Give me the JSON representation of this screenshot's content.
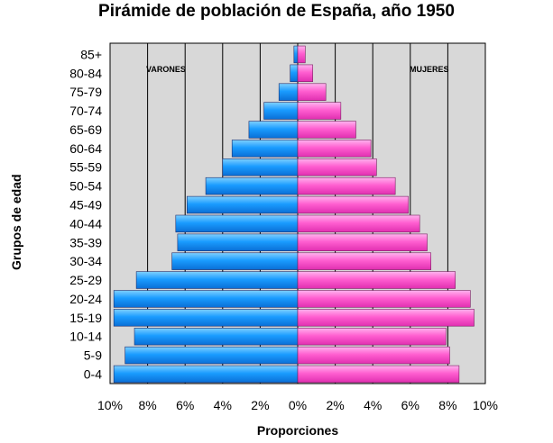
{
  "chart_data": {
    "type": "bar",
    "title": "Pirámide de población de España, año 1950",
    "xlabel": "Proporciones",
    "ylabel": "Grupos de edad",
    "categories": [
      "85+",
      "80-84",
      "75-79",
      "70-74",
      "65-69",
      "60-64",
      "55-59",
      "50-54",
      "45-49",
      "40-44",
      "35-39",
      "30-34",
      "25-29",
      "20-24",
      "15-19",
      "10-14",
      "5-9",
      "0-4"
    ],
    "series": [
      {
        "name": "VARONES",
        "color": "#1a9cff",
        "values": [
          0.2,
          0.4,
          1.0,
          1.8,
          2.6,
          3.5,
          4.0,
          4.9,
          5.9,
          6.5,
          6.4,
          6.7,
          8.6,
          9.8,
          9.8,
          8.7,
          9.2,
          9.8
        ]
      },
      {
        "name": "MUJERES",
        "color": "#ff5fd0",
        "values": [
          0.4,
          0.8,
          1.5,
          2.3,
          3.1,
          3.9,
          4.2,
          5.2,
          5.9,
          6.5,
          6.9,
          7.1,
          8.4,
          9.2,
          9.4,
          7.9,
          8.1,
          8.6
        ]
      }
    ],
    "xticks": [
      "10%",
      "8%",
      "6%",
      "4%",
      "2%",
      "0%",
      "2%",
      "4%",
      "6%",
      "8%",
      "10%"
    ],
    "xlim": [
      -10,
      10
    ],
    "grid": true,
    "legend": "inside-top"
  }
}
